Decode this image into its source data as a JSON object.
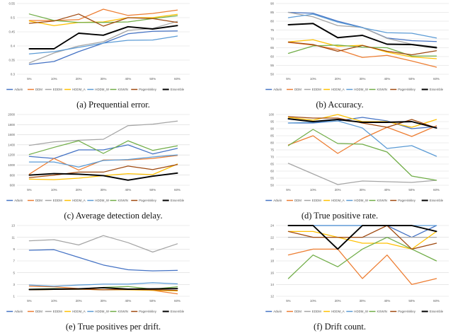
{
  "figure": {
    "background": "#ffffff",
    "grid_color": "#d9d9d9",
    "axis_text_color": "#595959"
  },
  "legend": {
    "position": "bottom",
    "entries": [
      {
        "name": "Adwin",
        "color": "#4472C4"
      },
      {
        "name": "DDM",
        "color": "#ED7D31"
      },
      {
        "name": "EDDM",
        "color": "#A5A5A5"
      },
      {
        "name": "HDDM_A",
        "color": "#FFC000"
      },
      {
        "name": "HDDM_W",
        "color": "#5B9BD5"
      },
      {
        "name": "KSWIN",
        "color": "#70AD47"
      },
      {
        "name": "PageHinkley",
        "color": "#9E480E"
      },
      {
        "name": "Ensemble",
        "color": "#000000"
      }
    ]
  },
  "chart_data": [
    {
      "id": "a",
      "type": "line",
      "caption": "(a) Prequential error.",
      "categories": [
        "5%",
        "10%",
        "20%",
        "30%",
        "40%",
        "50%",
        "60%"
      ],
      "ylim": [
        0.3,
        0.55
      ],
      "yticks": [
        0.3,
        0.35,
        0.4,
        0.45,
        0.5,
        0.55
      ],
      "ytick_labels": [
        "0.3",
        "0.35",
        "0.4",
        "0.45",
        "0.5",
        "0.55"
      ],
      "grid": true,
      "series": [
        {
          "name": "Adwin",
          "values": [
            0.335,
            0.345,
            0.38,
            0.41,
            0.443,
            0.452,
            0.453
          ]
        },
        {
          "name": "DDM",
          "values": [
            0.49,
            0.49,
            0.493,
            0.53,
            0.508,
            0.515,
            0.527
          ]
        },
        {
          "name": "EDDM",
          "values": [
            0.34,
            0.375,
            0.4,
            0.415,
            0.455,
            0.462,
            0.487
          ]
        },
        {
          "name": "HDDM_A",
          "values": [
            0.488,
            0.472,
            0.483,
            0.485,
            0.5,
            0.5,
            0.512
          ]
        },
        {
          "name": "HDDM_W",
          "values": [
            0.372,
            0.38,
            0.395,
            0.41,
            0.42,
            0.421,
            0.435
          ]
        },
        {
          "name": "KSWIN",
          "values": [
            0.513,
            0.49,
            0.483,
            0.483,
            0.485,
            0.497,
            0.507
          ]
        },
        {
          "name": "PageHinkley",
          "values": [
            0.48,
            0.488,
            0.513,
            0.47,
            0.5,
            0.497,
            0.483
          ]
        },
        {
          "name": "Ensemble",
          "values": [
            0.39,
            0.39,
            0.445,
            0.438,
            0.468,
            0.46,
            0.472
          ]
        }
      ]
    },
    {
      "id": "b",
      "type": "line",
      "caption": "(b) Accuracy.",
      "categories": [
        "5%",
        "10%",
        "20%",
        "30%",
        "40%",
        "50%",
        "60%"
      ],
      "ylim": [
        50,
        90
      ],
      "yticks": [
        50,
        55,
        60,
        65,
        70,
        75,
        80,
        85,
        90
      ],
      "ytick_labels": [
        "50",
        "55",
        "60",
        "65",
        "70",
        "75",
        "80",
        "85",
        "90"
      ],
      "grid": true,
      "series": [
        {
          "name": "Adwin",
          "values": [
            85.0,
            84.5,
            80.0,
            76.5,
            70.5,
            69.0,
            68.5
          ]
        },
        {
          "name": "DDM",
          "values": [
            68.0,
            66.5,
            64.0,
            59.5,
            60.7,
            57.5,
            54.0
          ]
        },
        {
          "name": "EDDM",
          "values": [
            85.0,
            82.5,
            77.5,
            76.5,
            70.3,
            67.0,
            65.5
          ]
        },
        {
          "name": "HDDM_A",
          "values": [
            68.3,
            69.5,
            65.8,
            66.4,
            62.5,
            59.8,
            58.8
          ]
        },
        {
          "name": "HDDM_W",
          "values": [
            82.0,
            84.0,
            79.5,
            76.3,
            73.5,
            73.2,
            70.5
          ]
        },
        {
          "name": "KSWIN",
          "values": [
            61.8,
            66.0,
            66.5,
            65.3,
            65.0,
            60.3,
            60.3
          ]
        },
        {
          "name": "PageHinkley",
          "values": [
            68.2,
            66.8,
            63.0,
            66.3,
            63.0,
            61.0,
            63.3
          ]
        },
        {
          "name": "Ensemble",
          "values": [
            78.0,
            78.7,
            70.7,
            72.0,
            67.0,
            66.8,
            65.0
          ]
        }
      ]
    },
    {
      "id": "c",
      "type": "line",
      "caption": "(c) Average detection delay.",
      "categories": [
        "5%",
        "10%",
        "20%",
        "30%",
        "40%",
        "50%",
        "60%"
      ],
      "ylim": [
        600,
        2000
      ],
      "yticks": [
        600,
        800,
        1000,
        1200,
        1400,
        1600,
        1800,
        2000
      ],
      "ytick_labels": [
        "600",
        "800",
        "1000",
        "1200",
        "1400",
        "1600",
        "1800",
        "2000"
      ],
      "grid": true,
      "series": [
        {
          "name": "Adwin",
          "values": [
            1170,
            1130,
            1300,
            1300,
            1400,
            1220,
            1330
          ]
        },
        {
          "name": "DDM",
          "values": [
            820,
            1130,
            900,
            1100,
            1100,
            1130,
            1190
          ]
        },
        {
          "name": "EDDM",
          "values": [
            1390,
            1460,
            1490,
            1510,
            1780,
            1810,
            1870
          ]
        },
        {
          "name": "HDDM_A",
          "values": [
            720,
            710,
            740,
            790,
            830,
            810,
            1020
          ]
        },
        {
          "name": "HDDM_W",
          "values": [
            1060,
            1060,
            960,
            1090,
            1110,
            1160,
            1200
          ]
        },
        {
          "name": "KSWIN",
          "values": [
            1210,
            1350,
            1480,
            1230,
            1480,
            1290,
            1380
          ]
        },
        {
          "name": "PageHinkley",
          "values": [
            750,
            800,
            860,
            860,
            980,
            910,
            1010
          ]
        },
        {
          "name": "Ensemble",
          "values": [
            800,
            830,
            820,
            790,
            700,
            780,
            840
          ]
        }
      ]
    },
    {
      "id": "d",
      "type": "line",
      "caption": "(d) True positive rate.",
      "categories": [
        "5%",
        "10%",
        "20%",
        "30%",
        "40%",
        "50%",
        "60%"
      ],
      "ylim": [
        50,
        100
      ],
      "yticks": [
        50,
        55,
        60,
        65,
        70,
        75,
        80,
        85,
        90,
        95,
        100
      ],
      "ytick_labels": [
        "50",
        "55",
        "60",
        "65",
        "70",
        "75",
        "80",
        "85",
        "90",
        "95",
        "100"
      ],
      "grid": true,
      "series": [
        {
          "name": "Adwin",
          "values": [
            94.0,
            94.0,
            95.5,
            98.0,
            95.5,
            90.0,
            91.5
          ]
        },
        {
          "name": "DDM",
          "values": [
            78.5,
            85.0,
            72.5,
            83.0,
            91.0,
            84.5,
            92.0
          ]
        },
        {
          "name": "EDDM",
          "values": [
            65.5,
            58.0,
            50.5,
            53.0,
            52.5,
            52.0,
            53.5
          ]
        },
        {
          "name": "HDDM_A",
          "values": [
            98.0,
            96.0,
            100.0,
            95.0,
            95.0,
            91.0,
            96.5
          ]
        },
        {
          "name": "HDDM_W",
          "values": [
            94.0,
            94.5,
            95.5,
            90.5,
            76.0,
            78.0,
            70.5
          ]
        },
        {
          "name": "KSWIN",
          "values": [
            78.0,
            89.5,
            79.5,
            79.0,
            73.5,
            56.5,
            53.5
          ]
        },
        {
          "name": "PageHinkley",
          "values": [
            98.5,
            97.5,
            97.5,
            94.0,
            91.0,
            96.5,
            90.5
          ]
        },
        {
          "name": "Ensemble",
          "values": [
            97.0,
            95.0,
            96.5,
            94.5,
            94.5,
            95.0,
            90.5
          ]
        }
      ]
    },
    {
      "id": "e",
      "type": "line",
      "caption": "(e) True positives per drift.",
      "categories": [
        "5%",
        "10%",
        "20%",
        "30%",
        "40%",
        "50%",
        "60%"
      ],
      "ylim": [
        1,
        13
      ],
      "yticks": [
        1,
        3,
        5,
        7,
        9,
        11,
        13
      ],
      "ytick_labels": [
        "1",
        "3",
        "5",
        "7",
        "9",
        "11",
        "13"
      ],
      "grid": true,
      "series": [
        {
          "name": "Adwin",
          "values": [
            8.8,
            8.9,
            7.6,
            6.3,
            5.5,
            5.3,
            5.4
          ]
        },
        {
          "name": "DDM",
          "values": [
            2.7,
            2.6,
            2.3,
            2.1,
            2.2,
            2.0,
            1.4
          ]
        },
        {
          "name": "EDDM",
          "values": [
            10.4,
            10.6,
            9.7,
            11.3,
            10.1,
            8.5,
            9.9
          ]
        },
        {
          "name": "HDDM_A",
          "values": [
            2.1,
            2.15,
            2.2,
            2.1,
            2.1,
            2.0,
            1.9
          ]
        },
        {
          "name": "HDDM_W",
          "values": [
            2.9,
            2.7,
            2.9,
            3.05,
            3.05,
            3.3,
            3.1
          ]
        },
        {
          "name": "KSWIN",
          "values": [
            2.2,
            2.3,
            2.2,
            2.5,
            2.65,
            2.2,
            2.6
          ]
        },
        {
          "name": "PageHinkley",
          "values": [
            2.1,
            2.15,
            2.2,
            2.1,
            2.15,
            2.1,
            2.0
          ]
        },
        {
          "name": "Ensemble",
          "values": [
            2.15,
            2.2,
            2.25,
            2.45,
            2.2,
            2.25,
            2.3
          ]
        }
      ]
    },
    {
      "id": "f",
      "type": "line",
      "caption": "(f) Drift count.",
      "categories": [
        "5%",
        "10%",
        "20%",
        "30%",
        "40%",
        "50%",
        "60%"
      ],
      "ylim": [
        12,
        24
      ],
      "yticks": [
        12,
        14,
        16,
        18,
        20,
        22,
        24
      ],
      "ytick_labels": [
        "12",
        "14",
        "16",
        "18",
        "20",
        "22",
        "24"
      ],
      "grid": true,
      "series": [
        {
          "name": "Adwin",
          "values": [
            24,
            24,
            24,
            24,
            24,
            22,
            24
          ]
        },
        {
          "name": "DDM",
          "values": [
            19,
            20,
            20,
            15,
            19,
            14,
            15
          ]
        },
        {
          "name": "EDDM",
          "values": [
            22,
            22,
            22,
            22,
            22,
            22,
            22
          ]
        },
        {
          "name": "HDDM_A",
          "values": [
            23,
            23,
            22,
            21,
            21,
            20,
            23
          ]
        },
        {
          "name": "HDDM_W",
          "values": [
            24,
            24,
            24,
            24,
            24,
            24,
            24
          ]
        },
        {
          "name": "KSWIN",
          "values": [
            15,
            19,
            17,
            20,
            22,
            20,
            18
          ]
        },
        {
          "name": "PageHinkley",
          "values": [
            23,
            22,
            22,
            22,
            24,
            20,
            21
          ]
        },
        {
          "name": "Ensemble",
          "values": [
            24,
            24,
            20,
            24,
            24,
            24,
            23
          ]
        }
      ]
    }
  ]
}
